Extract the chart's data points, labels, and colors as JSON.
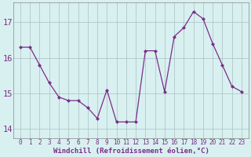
{
  "hours": [
    0,
    1,
    2,
    3,
    4,
    5,
    6,
    7,
    8,
    9,
    10,
    11,
    12,
    13,
    14,
    15,
    16,
    17,
    18,
    19,
    20,
    21,
    22,
    23
  ],
  "windchill": [
    16.3,
    16.3,
    15.8,
    15.3,
    14.9,
    14.8,
    14.8,
    14.6,
    14.3,
    15.1,
    14.2,
    14.2,
    14.2,
    16.2,
    16.2,
    15.05,
    16.6,
    16.85,
    17.3,
    17.1,
    16.4,
    15.8,
    15.2,
    15.05
  ],
  "line_color": "#7B2D8B",
  "marker": "D",
  "marker_size": 2.5,
  "bg_color": "#d8f0f0",
  "grid_color": "#b0c8c8",
  "xlabel": "Windchill (Refroidissement éolien,°C)",
  "ylim": [
    13.75,
    17.55
  ],
  "yticks": [
    14,
    15,
    16,
    17
  ],
  "xtick_labels": [
    "0",
    "1",
    "2",
    "3",
    "4",
    "5",
    "6",
    "7",
    "8",
    "9",
    "10",
    "11",
    "12",
    "13",
    "14",
    "15",
    "16",
    "17",
    "18",
    "19",
    "20",
    "21",
    "22",
    "23"
  ],
  "tick_label_color": "#7B2D8B",
  "xlabel_fontsize": 6.5,
  "ytick_fontsize": 7.5,
  "xtick_fontsize": 5.5
}
